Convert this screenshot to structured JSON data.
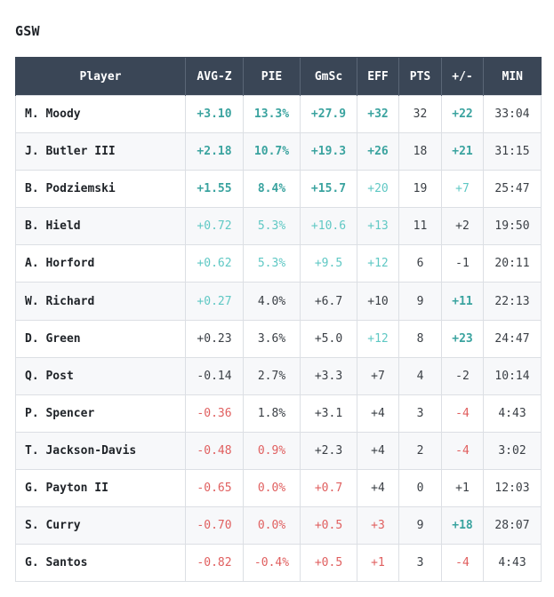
{
  "team": "GSW",
  "columns": [
    "Player",
    "AVG-Z",
    "PIE",
    "GmSc",
    "EFF",
    "PTS",
    "+/-",
    "MIN"
  ],
  "rows": [
    {
      "player": "M. Moody",
      "cells": [
        {
          "v": "+3.10",
          "t": "pos-strong"
        },
        {
          "v": "13.3%",
          "t": "pos-strong"
        },
        {
          "v": "+27.9",
          "t": "pos-strong"
        },
        {
          "v": "+32",
          "t": "pos-strong"
        },
        {
          "v": "32",
          "t": "neutral"
        },
        {
          "v": "+22",
          "t": "pos-strong"
        },
        {
          "v": "33:04",
          "t": "neutral"
        }
      ]
    },
    {
      "player": "J. Butler III",
      "cells": [
        {
          "v": "+2.18",
          "t": "pos-strong"
        },
        {
          "v": "10.7%",
          "t": "pos-strong"
        },
        {
          "v": "+19.3",
          "t": "pos-strong"
        },
        {
          "v": "+26",
          "t": "pos-strong"
        },
        {
          "v": "18",
          "t": "neutral"
        },
        {
          "v": "+21",
          "t": "pos-strong"
        },
        {
          "v": "31:15",
          "t": "neutral"
        }
      ]
    },
    {
      "player": "B. Podziemski",
      "cells": [
        {
          "v": "+1.55",
          "t": "pos-strong"
        },
        {
          "v": "8.4%",
          "t": "pos-strong"
        },
        {
          "v": "+15.7",
          "t": "pos-strong"
        },
        {
          "v": "+20",
          "t": "pos-weak"
        },
        {
          "v": "19",
          "t": "neutral"
        },
        {
          "v": "+7",
          "t": "pos-weak"
        },
        {
          "v": "25:47",
          "t": "neutral"
        }
      ]
    },
    {
      "player": "B. Hield",
      "cells": [
        {
          "v": "+0.72",
          "t": "pos-weak"
        },
        {
          "v": "5.3%",
          "t": "pos-weak"
        },
        {
          "v": "+10.6",
          "t": "pos-weak"
        },
        {
          "v": "+13",
          "t": "pos-weak"
        },
        {
          "v": "11",
          "t": "neutral"
        },
        {
          "v": "+2",
          "t": "neutral"
        },
        {
          "v": "19:50",
          "t": "neutral"
        }
      ]
    },
    {
      "player": "A. Horford",
      "cells": [
        {
          "v": "+0.62",
          "t": "pos-weak"
        },
        {
          "v": "5.3%",
          "t": "pos-weak"
        },
        {
          "v": "+9.5",
          "t": "pos-weak"
        },
        {
          "v": "+12",
          "t": "pos-weak"
        },
        {
          "v": "6",
          "t": "neutral"
        },
        {
          "v": "-1",
          "t": "neutral"
        },
        {
          "v": "20:11",
          "t": "neutral"
        }
      ]
    },
    {
      "player": "W. Richard",
      "cells": [
        {
          "v": "+0.27",
          "t": "pos-weak"
        },
        {
          "v": "4.0%",
          "t": "neutral"
        },
        {
          "v": "+6.7",
          "t": "neutral"
        },
        {
          "v": "+10",
          "t": "neutral"
        },
        {
          "v": "9",
          "t": "neutral"
        },
        {
          "v": "+11",
          "t": "pos-strong"
        },
        {
          "v": "22:13",
          "t": "neutral"
        }
      ]
    },
    {
      "player": "D. Green",
      "cells": [
        {
          "v": "+0.23",
          "t": "neutral"
        },
        {
          "v": "3.6%",
          "t": "neutral"
        },
        {
          "v": "+5.0",
          "t": "neutral"
        },
        {
          "v": "+12",
          "t": "pos-weak"
        },
        {
          "v": "8",
          "t": "neutral"
        },
        {
          "v": "+23",
          "t": "pos-strong"
        },
        {
          "v": "24:47",
          "t": "neutral"
        }
      ]
    },
    {
      "player": "Q. Post",
      "cells": [
        {
          "v": "-0.14",
          "t": "neutral"
        },
        {
          "v": "2.7%",
          "t": "neutral"
        },
        {
          "v": "+3.3",
          "t": "neutral"
        },
        {
          "v": "+7",
          "t": "neutral"
        },
        {
          "v": "4",
          "t": "neutral"
        },
        {
          "v": "-2",
          "t": "neutral"
        },
        {
          "v": "10:14",
          "t": "neutral"
        }
      ]
    },
    {
      "player": "P. Spencer",
      "cells": [
        {
          "v": "-0.36",
          "t": "neg"
        },
        {
          "v": "1.8%",
          "t": "neutral"
        },
        {
          "v": "+3.1",
          "t": "neutral"
        },
        {
          "v": "+4",
          "t": "neutral"
        },
        {
          "v": "3",
          "t": "neutral"
        },
        {
          "v": "-4",
          "t": "neg"
        },
        {
          "v": "4:43",
          "t": "neutral"
        }
      ]
    },
    {
      "player": "T. Jackson-Davis",
      "cells": [
        {
          "v": "-0.48",
          "t": "neg"
        },
        {
          "v": "0.9%",
          "t": "neg"
        },
        {
          "v": "+2.3",
          "t": "neutral"
        },
        {
          "v": "+4",
          "t": "neutral"
        },
        {
          "v": "2",
          "t": "neutral"
        },
        {
          "v": "-4",
          "t": "neg"
        },
        {
          "v": "3:02",
          "t": "neutral"
        }
      ]
    },
    {
      "player": "G. Payton II",
      "cells": [
        {
          "v": "-0.65",
          "t": "neg"
        },
        {
          "v": "0.0%",
          "t": "neg"
        },
        {
          "v": "+0.7",
          "t": "neg"
        },
        {
          "v": "+4",
          "t": "neutral"
        },
        {
          "v": "0",
          "t": "neutral"
        },
        {
          "v": "+1",
          "t": "neutral"
        },
        {
          "v": "12:03",
          "t": "neutral"
        }
      ]
    },
    {
      "player": "S. Curry",
      "cells": [
        {
          "v": "-0.70",
          "t": "neg"
        },
        {
          "v": "0.0%",
          "t": "neg"
        },
        {
          "v": "+0.5",
          "t": "neg"
        },
        {
          "v": "+3",
          "t": "neg"
        },
        {
          "v": "9",
          "t": "neutral"
        },
        {
          "v": "+18",
          "t": "pos-strong"
        },
        {
          "v": "28:07",
          "t": "neutral"
        }
      ]
    },
    {
      "player": "G. Santos",
      "cells": [
        {
          "v": "-0.82",
          "t": "neg"
        },
        {
          "v": "-0.4%",
          "t": "neg"
        },
        {
          "v": "+0.5",
          "t": "neg"
        },
        {
          "v": "+1",
          "t": "neg"
        },
        {
          "v": "3",
          "t": "neutral"
        },
        {
          "v": "-4",
          "t": "neg"
        },
        {
          "v": "4:43",
          "t": "neutral"
        }
      ]
    }
  ],
  "colors": {
    "header_bg": "#3a4656",
    "positive_strong": "#3aa39f",
    "positive_weak": "#5fc8c4",
    "negative": "#e05f5f",
    "neutral": "#3a3f45"
  }
}
